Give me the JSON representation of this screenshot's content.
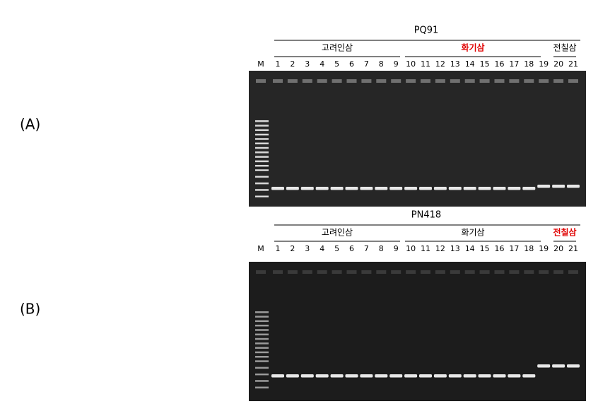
{
  "panels": [
    {
      "label": "(A)",
      "marker": "PQ91",
      "groups": [
        {
          "name": "고려인삼",
          "color": "#000000"
        },
        {
          "name": "화기삼",
          "color": "#e00000"
        },
        {
          "name": "전칠삼",
          "color": "#000000"
        }
      ],
      "lanes": [
        "M",
        "1",
        "2",
        "3",
        "4",
        "5",
        "6",
        "7",
        "8",
        "9",
        "10",
        "11",
        "12",
        "13",
        "14",
        "15",
        "16",
        "17",
        "18",
        "19",
        "20",
        "21"
      ]
    },
    {
      "label": "(B)",
      "marker": "PN418",
      "groups": [
        {
          "name": "고려인삼",
          "color": "#000000"
        },
        {
          "name": "화기삼",
          "color": "#000000"
        },
        {
          "name": "전칠삼",
          "color": "#e00000"
        }
      ],
      "lanes": [
        "M",
        "1",
        "2",
        "3",
        "4",
        "5",
        "6",
        "7",
        "8",
        "9",
        "10",
        "11",
        "12",
        "13",
        "14",
        "15",
        "16",
        "17",
        "18",
        "19",
        "20",
        "21"
      ]
    }
  ]
}
